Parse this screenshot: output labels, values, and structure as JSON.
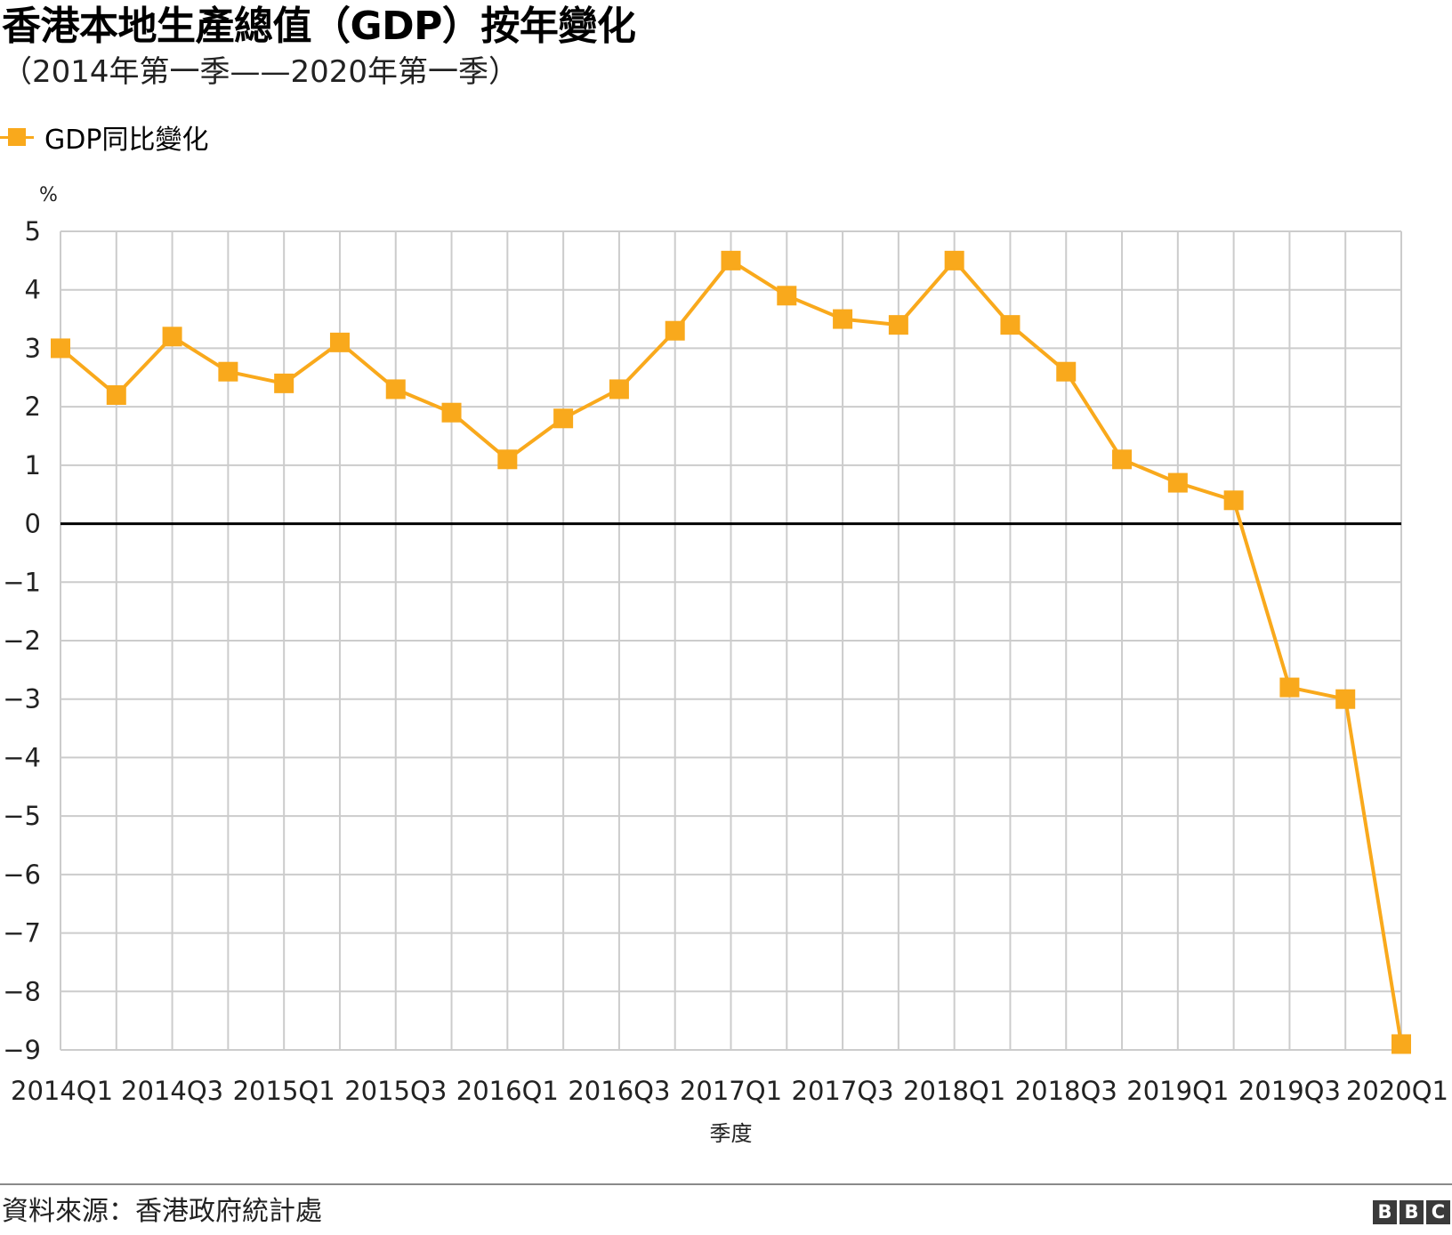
{
  "chart_data": {
    "type": "line",
    "title": "香港本地生產總值（GDP）按年變化",
    "subtitle": "（2014年第一季——2020年第一季）",
    "ylabel": "%",
    "xlabel": "季度",
    "ylim": [
      -9,
      5
    ],
    "yticks": [
      5,
      4,
      3,
      2,
      1,
      0,
      -1,
      -2,
      -3,
      -4,
      -5,
      -6,
      -7,
      -8,
      -9
    ],
    "ytick_labels": [
      "5",
      "4",
      "3",
      "2",
      "1",
      "0",
      "−1",
      "−2",
      "−3",
      "−4",
      "−5",
      "−6",
      "−7",
      "−8",
      "−9"
    ],
    "categories": [
      "2014Q1",
      "2014Q2",
      "2014Q3",
      "2014Q4",
      "2015Q1",
      "2015Q2",
      "2015Q3",
      "2015Q4",
      "2016Q1",
      "2016Q2",
      "2016Q3",
      "2016Q4",
      "2017Q1",
      "2017Q2",
      "2017Q3",
      "2017Q4",
      "2018Q1",
      "2018Q2",
      "2018Q3",
      "2018Q4",
      "2019Q1",
      "2019Q2",
      "2019Q3",
      "2019Q4",
      "2020Q1"
    ],
    "xtick_labels": [
      "2014Q1",
      "2014Q3",
      "2015Q1",
      "2015Q3",
      "2016Q1",
      "2016Q3",
      "2017Q1",
      "2017Q3",
      "2018Q1",
      "2018Q3",
      "2019Q1",
      "2019Q3",
      "2020Q1"
    ],
    "series": [
      {
        "name": "GDP同比變化",
        "color": "#F9A91C",
        "marker": "square",
        "values": [
          3.0,
          2.2,
          3.2,
          2.6,
          2.4,
          3.1,
          2.3,
          1.9,
          1.1,
          1.8,
          2.3,
          3.3,
          4.5,
          3.9,
          3.5,
          3.4,
          4.5,
          3.4,
          2.6,
          1.1,
          0.7,
          0.4,
          -2.8,
          -3.0,
          -8.9
        ]
      }
    ],
    "grid": true,
    "zero_line": true,
    "legend_position": "top-left",
    "colors": {
      "series": "#F9A91C",
      "grid": "#cccccc",
      "zero_line": "#000000"
    }
  },
  "footer": {
    "source": "資料來源：香港政府統計處",
    "logo": [
      "B",
      "B",
      "C"
    ]
  }
}
